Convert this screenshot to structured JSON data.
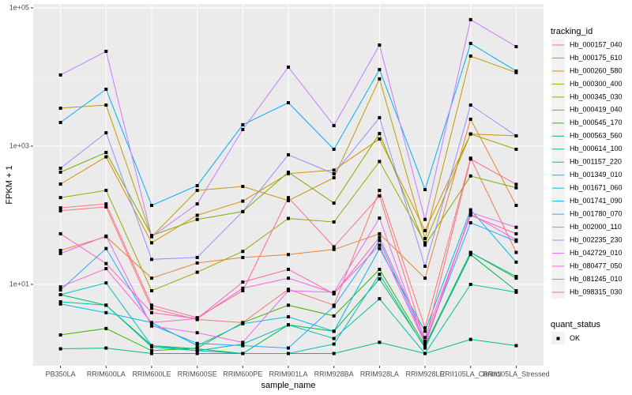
{
  "chart_data": {
    "type": "line",
    "x_label": "sample_name",
    "y_label": "FPKM + 1",
    "log_y": true,
    "grid": true,
    "categories": [
      "PB350LA",
      "RRIM600LA",
      "RRIM600LE",
      "RRIM600SE",
      "RRIM600PE",
      "RRIM901LA",
      "RRIM928BA",
      "RRIM928LA",
      "RRIM928LE",
      "RRII105LA_Control",
      "RRII105LA_Stressed"
    ],
    "ylim": [
      0.665,
      114000
    ],
    "yticks": [
      {
        "value": 10,
        "label": "1e+01"
      },
      {
        "value": 1000,
        "label": "1e+03"
      },
      {
        "value": 100000,
        "label": "1e+05"
      }
    ],
    "minor_yticks": [
      100,
      10000
    ],
    "legend_title": "tracking_id",
    "shape_legend": {
      "title": "quant_status",
      "label": "OK"
    },
    "series": [
      {
        "name": "Hb_000157_040",
        "color": "#F8766D",
        "values": [
          116,
          132,
          4.5,
          3.1,
          2.8,
          8.5,
          5.0,
          229,
          2.35,
          670,
          29
        ]
      },
      {
        "name": "Hb_000175_610",
        "color": "#EA8331",
        "values": [
          31,
          49,
          12.3,
          20.4,
          24.5,
          27,
          32,
          54,
          12.3,
          2450,
          139
        ]
      },
      {
        "name": "Hb_000260_580",
        "color": "#D89000",
        "values": [
          283,
          700,
          40,
          100,
          160,
          400,
          450,
          1270,
          60,
          1500,
          1410
        ]
      },
      {
        "name": "Hb_000300_400",
        "color": "#C09B00",
        "values": [
          3540,
          3930,
          49,
          229,
          261,
          163,
          349,
          9400,
          46,
          20100,
          11600
        ]
      },
      {
        "name": "Hb_000345_030",
        "color": "#A3A500",
        "values": [
          180,
          229,
          8.1,
          15,
          30,
          90,
          80,
          600,
          40,
          1500,
          900
        ]
      },
      {
        "name": "Hb_000419_040",
        "color": "#7CAE00",
        "values": [
          420,
          810,
          51,
          87,
          113,
          420,
          150,
          1520,
          37,
          370,
          250
        ]
      },
      {
        "name": "Hb_000545_170",
        "color": "#39B600",
        "values": [
          1.86,
          2.3,
          1.1,
          1.2,
          2.8,
          5.0,
          3.5,
          16.5,
          1.3,
          29,
          12.3
        ]
      },
      {
        "name": "Hb_000563_560",
        "color": "#00BB4E",
        "values": [
          7.1,
          5.0,
          1.3,
          1.17,
          1.0,
          2.6,
          2.1,
          12,
          1.24,
          27,
          8.1
        ]
      },
      {
        "name": "Hb_000614_100",
        "color": "#00BF7D",
        "values": [
          1.17,
          1.2,
          1.0,
          1.0,
          1.0,
          1.0,
          1.0,
          1.45,
          1.0,
          1.6,
          1.3
        ]
      },
      {
        "name": "Hb_001157_220",
        "color": "#00C1A3",
        "values": [
          5.6,
          5.0,
          1.24,
          1.1,
          1.37,
          2.6,
          1.65,
          6.2,
          1.0,
          10,
          7.7
        ]
      },
      {
        "name": "Hb_001349_010",
        "color": "#00BFC4",
        "values": [
          7.1,
          10.5,
          1.3,
          1.1,
          1.0,
          1.0,
          1.37,
          14,
          1.2,
          29,
          13
        ]
      },
      {
        "name": "Hb_001671_060",
        "color": "#00BAE0",
        "values": [
          5.2,
          3.9,
          2.8,
          1.3,
          2.7,
          3.4,
          2.1,
          33,
          2.1,
          120,
          21
        ]
      },
      {
        "name": "Hb_001741_090",
        "color": "#00B0F6",
        "values": [
          2200,
          6650,
          139,
          268,
          2040,
          4250,
          900,
          12800,
          235,
          30600,
          12200
        ]
      },
      {
        "name": "Hb_001780_070",
        "color": "#35A2FF",
        "values": [
          8.3,
          33,
          2.6,
          1.4,
          1.3,
          1.2,
          4.8,
          43,
          1.5,
          78,
          42
        ]
      },
      {
        "name": "Hb_002000_110",
        "color": "#9590FF",
        "values": [
          479,
          1560,
          23,
          24.5,
          113,
          750,
          398,
          2580,
          18.3,
          3930,
          1410
        ]
      },
      {
        "name": "Hb_002235_230",
        "color": "#C77CFF",
        "values": [
          10700,
          23500,
          49,
          146,
          1740,
          13900,
          1980,
          29000,
          87,
          67600,
          27500
        ]
      },
      {
        "name": "Hb_042729_010",
        "color": "#E76BF3",
        "values": [
          28,
          50,
          2.5,
          2,
          1.45,
          8.1,
          7.7,
          91,
          1.3,
          110,
          67
        ]
      },
      {
        "name": "Hb_080477_050",
        "color": "#FA62DB",
        "values": [
          9.2,
          16.9,
          2.8,
          3.2,
          8.8,
          12.3,
          7.5,
          37,
          1.4,
          104,
          44
        ]
      },
      {
        "name": "Hb_081245_010",
        "color": "#FF62BC",
        "values": [
          54,
          20,
          3.9,
          3.2,
          10.8,
          16.5,
          7.3,
          48,
          1.7,
          100,
          54
        ]
      },
      {
        "name": "Hb_098315_030",
        "color": "#FF6C91",
        "values": [
          128,
          146,
          5.0,
          3.3,
          8.1,
          180,
          35,
          190,
          1.5,
          650,
          280
        ]
      }
    ]
  }
}
